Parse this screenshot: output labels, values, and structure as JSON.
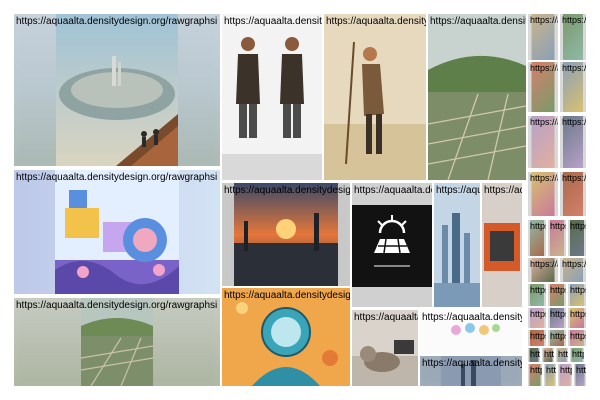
{
  "gallery": {
    "caption_url": "https://aquaalta.densitydesign.org/rawgraphsi",
    "tiles": [
      {
        "label": "https://aquaalta.densitydesign.org/rawgraphsi",
        "subject": "floating-circular-city-cliff-illustration"
      },
      {
        "label": "https://aquaalta.densitydesign.org/rawgraphsi",
        "subject": "fashion-double-portrait-leather-coat"
      },
      {
        "label": "https://aquaalta.densitydesign.org/rawgraphsi",
        "subject": "desert-warrior-woman-staff"
      },
      {
        "label": "https://aquaalta.densitydesign.org/rawgraphsi",
        "subject": "green-valley-city-aerial"
      },
      {
        "label": "https://aquaalta.densitydesign.org/rawgraphsi",
        "subject": "colorful-book-covers-thumbnail"
      },
      {
        "label": "https://aquaalta.densitydesign.org/rawgraphsi",
        "subject": "purple-retro-machine-illustration"
      },
      {
        "label": "https://aquaalta.densitydesign.org/rawgraphsi",
        "subject": "sunset-harbor-scene"
      },
      {
        "label": "https://aquaalta.densitydesign.org/rawgraphsi",
        "subject": "solar-panel-logo"
      },
      {
        "label": "https://aquaalta.densitydesign.org/rawgraphsi",
        "subject": "futuristic-skyline-towers"
      },
      {
        "label": "https://aquaalta.densitydesign.org/rawgraphsi",
        "subject": "orange-book-cover"
      },
      {
        "label": "https://aquaalta.densitydesign.org/rawgraphsi",
        "subject": "green-valley-city-aerial"
      },
      {
        "label": "https://aquaalta.densitydesign.org/rawgraphsi",
        "subject": "orange-diver-helmet-illustration"
      },
      {
        "label": "https://aquaalta.densitydesign.org/rawgraphsi",
        "subject": "cat-lying-indoor"
      },
      {
        "label": "https://aquaalta.densitydesign.org/rawgraphsi",
        "subject": "pastel-characters-infographic"
      },
      {
        "label": "https://aquaalta.densitydesign.org/rawgraphsi",
        "subject": "city-skyline-blue"
      }
    ],
    "small_tile_count": 40
  },
  "colors": {
    "background": "#ffffff",
    "label_text": "#000000"
  }
}
